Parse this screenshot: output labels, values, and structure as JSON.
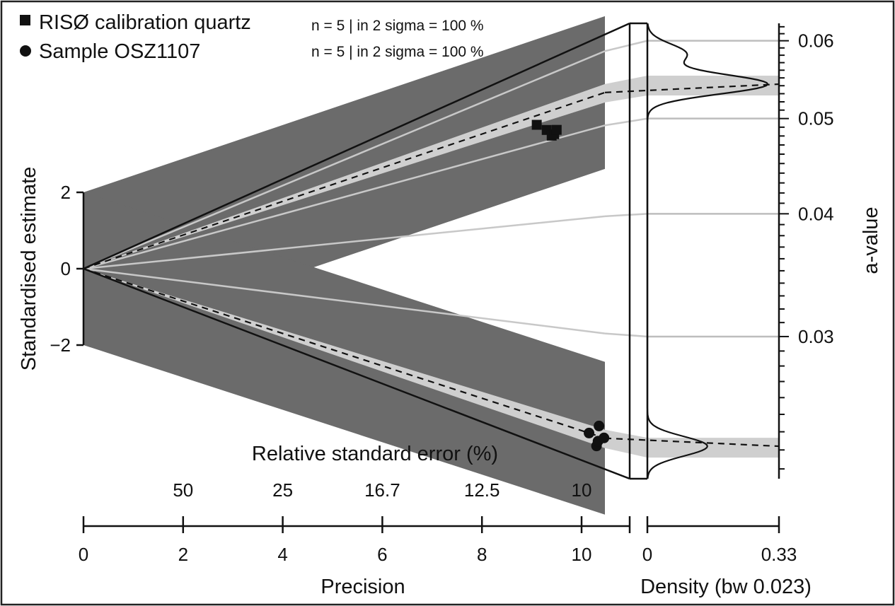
{
  "chart_data": {
    "type": "scatter",
    "plot_kind": "abanico",
    "legend_placement": "top-left",
    "legend": [
      {
        "name": "RISØ calibration quartz",
        "marker": "square",
        "stats": "n = 5 | in 2 sigma = 100 %"
      },
      {
        "name": "Sample OSZ1107",
        "marker": "circle",
        "stats": "n = 5 | in 2 sigma = 100 %"
      }
    ],
    "axes": {
      "y_left": {
        "label": "Standardised estimate",
        "ticks": [
          2,
          0,
          -2
        ],
        "tick_labels": [
          "2",
          "0",
          "−2"
        ]
      },
      "y_right": {
        "label": "a-value",
        "ticks": [
          0.06,
          0.05,
          0.04,
          0.03
        ],
        "tick_labels": [
          "0.06",
          "0.05",
          "0.04",
          "0.03"
        ],
        "scale": "log",
        "range": [
          0.0215,
          0.0625
        ]
      },
      "x_precision": {
        "label": "Precision",
        "ticks": [
          0,
          2,
          4,
          6,
          8,
          10
        ],
        "tick_labels": [
          "0",
          "2",
          "4",
          "6",
          "8",
          "10"
        ],
        "range": [
          0,
          10.5
        ]
      },
      "x_rse": {
        "label": "Relative standard error (%)",
        "ticks": [
          2,
          4,
          6,
          8,
          10
        ],
        "tick_labels": [
          "50",
          "25",
          "16.7",
          "12.5",
          "10"
        ]
      },
      "x_density": {
        "label": "Density (bw 0.023)",
        "ticks": [
          0,
          0.33
        ],
        "tick_labels": [
          "0",
          "0.33"
        ]
      }
    },
    "central_values": [
      0.0542,
      0.0232
    ],
    "reference_lines": [
      0.06,
      0.05,
      0.04,
      0.03
    ],
    "series": [
      {
        "name": "RISØ calibration quartz",
        "marker": "square",
        "points": [
          {
            "precision": 9.1,
            "a": 0.0528
          },
          {
            "precision": 9.3,
            "a": 0.0516
          },
          {
            "precision": 9.4,
            "a": 0.0506
          },
          {
            "precision": 9.45,
            "a": 0.0507
          },
          {
            "precision": 9.5,
            "a": 0.0512
          }
        ]
      },
      {
        "name": "Sample OSZ1107",
        "marker": "circle",
        "points": [
          {
            "precision": 10.15,
            "a": 0.0232
          },
          {
            "precision": 10.3,
            "a": 0.0226
          },
          {
            "precision": 10.33,
            "a": 0.0229
          },
          {
            "precision": 10.35,
            "a": 0.0238
          },
          {
            "precision": 10.45,
            "a": 0.0232
          }
        ]
      }
    ],
    "density": {
      "bandwidth": 0.023,
      "max": 0.33,
      "components": [
        {
          "a": 0.0542,
          "height": 0.96
        },
        {
          "a": 0.0582,
          "height": 0.31
        },
        {
          "a": 0.0232,
          "height": 0.48
        }
      ]
    }
  }
}
